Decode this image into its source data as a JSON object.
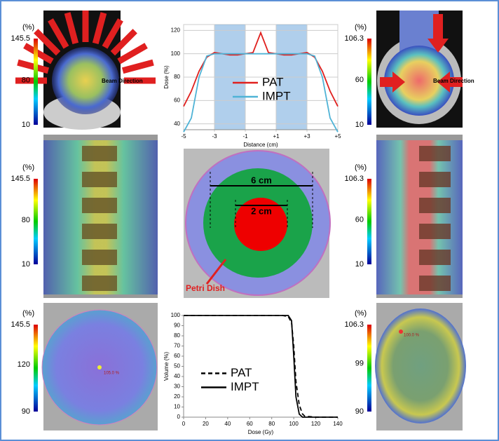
{
  "chart_data": [
    {
      "type": "line",
      "ylabel": "Dose (%)",
      "xlabel": "Distance (cm)",
      "x": [
        -5,
        -4.5,
        -4,
        -3.5,
        -3,
        -2.5,
        -2,
        -1.5,
        -1,
        -0.5,
        0,
        0.5,
        1,
        1.5,
        2,
        2.5,
        3,
        3.5,
        4,
        4.5,
        5
      ],
      "series": [
        {
          "name": "PAT",
          "color": "#e0201e",
          "values": [
            55,
            68,
            85,
            97,
            101,
            100,
            99,
            99,
            100,
            101,
            118,
            101,
            100,
            99,
            99,
            100,
            101,
            97,
            85,
            68,
            55
          ]
        },
        {
          "name": "IMPT",
          "color": "#4fb3d6",
          "values": [
            33,
            45,
            80,
            98,
            100,
            100,
            100,
            100,
            100,
            100,
            100,
            100,
            100,
            100,
            100,
            100,
            100,
            98,
            80,
            45,
            33
          ]
        }
      ],
      "xlim": [
        -5,
        5
      ],
      "xticks": [
        -5,
        -3,
        -1,
        {
          "value": 1,
          "label": "+1"
        },
        {
          "value": 3,
          "label": "+3"
        },
        {
          "value": 5,
          "label": "+5"
        }
      ],
      "ylim": [
        35,
        125
      ],
      "yticks": [
        40,
        60,
        80,
        100,
        120
      ],
      "shaded_regions": [
        [
          -3,
          -1
        ],
        [
          1,
          3
        ]
      ],
      "shade_color": "#6fa8dc",
      "grid": true,
      "legend": "center"
    },
    {
      "type": "line",
      "ylabel": "Volume (%)",
      "xlabel": "Dose (Gy)",
      "x": [
        0,
        90,
        95,
        98,
        100,
        102,
        105,
        108,
        110,
        120,
        140
      ],
      "series": [
        {
          "name": "PAT",
          "color": "#000000",
          "dashed": true,
          "values": [
            100,
            100,
            99,
            93,
            70,
            35,
            12,
            3,
            1,
            0,
            0
          ]
        },
        {
          "name": "IMPT",
          "color": "#000000",
          "dashed": false,
          "values": [
            100,
            100,
            100,
            95,
            60,
            20,
            3,
            0,
            0,
            0,
            0
          ]
        }
      ],
      "xlim": [
        0,
        140
      ],
      "xticks": [
        0,
        20,
        40,
        60,
        80,
        100,
        120,
        140
      ],
      "ylim": [
        0,
        100
      ],
      "yticks": [
        0,
        10,
        20,
        30,
        40,
        50,
        60,
        70,
        80,
        90,
        100
      ],
      "grid": false,
      "legend": "center-left"
    }
  ],
  "panels": {
    "row1_left": {
      "colorbar": {
        "unit": "(%)",
        "ticks": [
          145.5,
          80,
          10
        ]
      },
      "annotation": "Beam Direction"
    },
    "row1_right": {
      "colorbar": {
        "unit": "(%)",
        "ticks": [
          106.3,
          60,
          10
        ]
      },
      "annotation": "Beam Direction"
    },
    "row2_left": {
      "colorbar": {
        "unit": "(%)",
        "ticks": [
          145.5,
          80,
          10
        ]
      }
    },
    "row2_center": {
      "outer_width": "6 cm",
      "inner_width": "2 cm",
      "label": "Petri Dish"
    },
    "row2_right": {
      "colorbar": {
        "unit": "(%)",
        "ticks": [
          106.3,
          60,
          10
        ]
      }
    },
    "row3_left": {
      "colorbar": {
        "unit": "(%)",
        "ticks": [
          145.5,
          120,
          90
        ]
      },
      "annotation": "105.0 %"
    },
    "row3_right": {
      "colorbar": {
        "unit": "(%)",
        "ticks": [
          106.3,
          99,
          90
        ]
      },
      "annotation": "100.0 %"
    }
  }
}
